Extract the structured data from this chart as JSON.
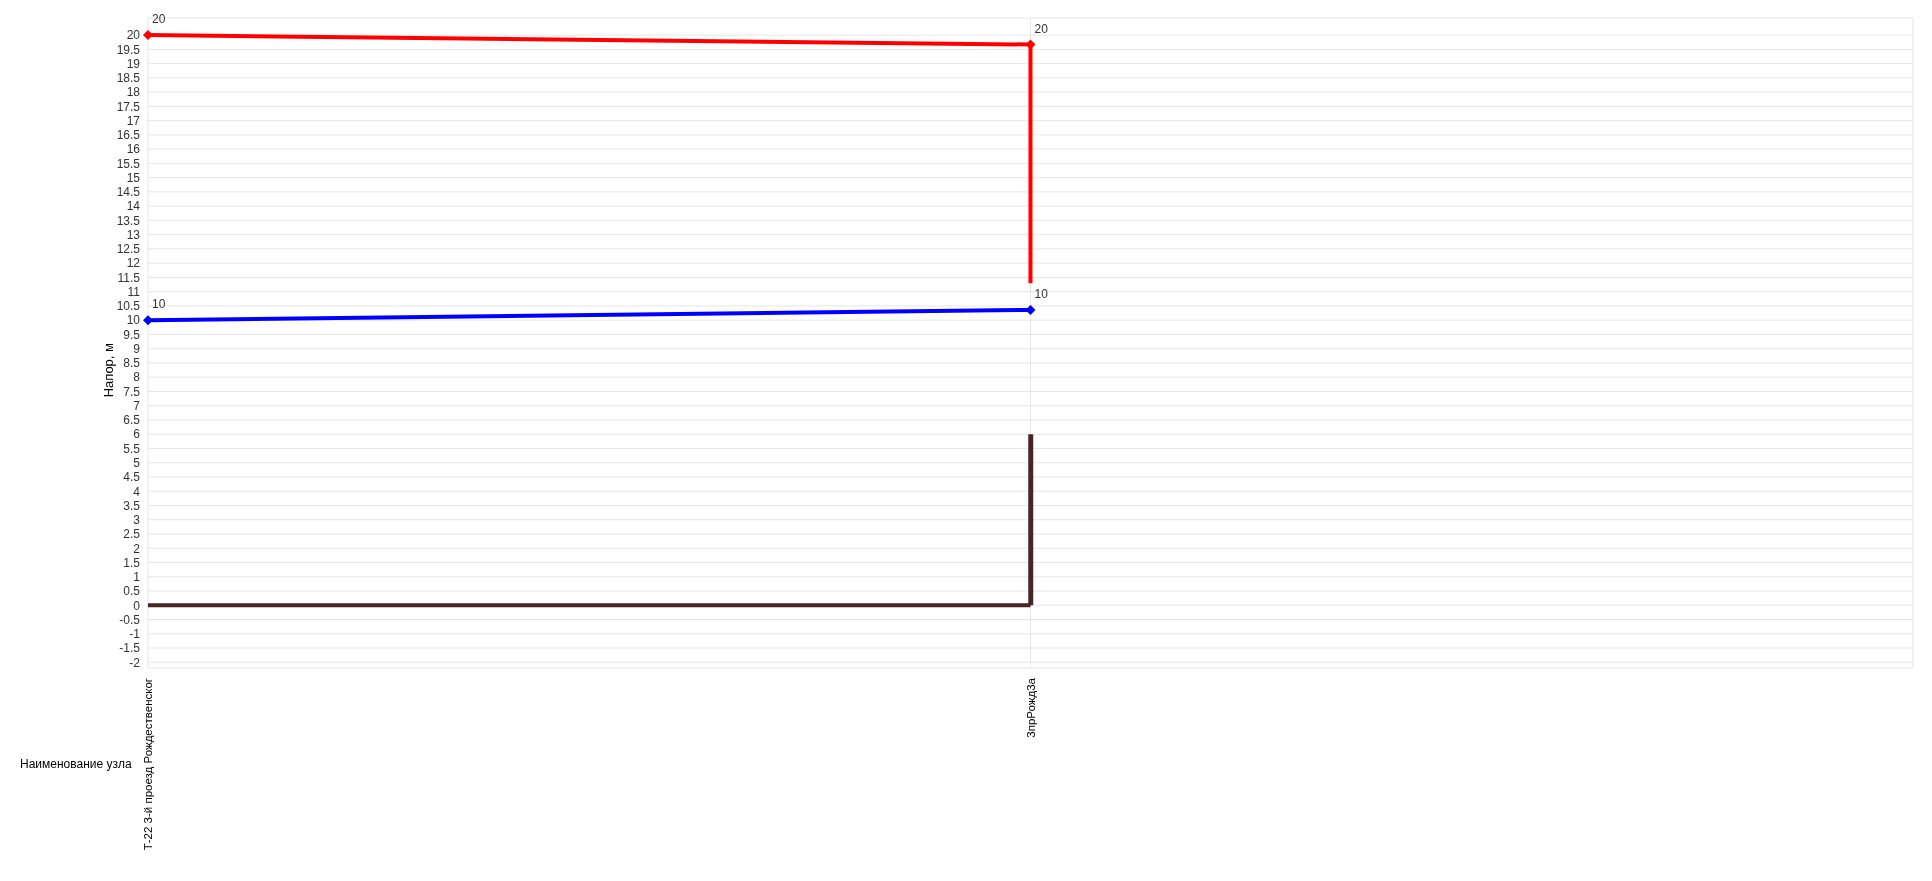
{
  "chart_data": {
    "type": "line",
    "ylabel": "Напор, м",
    "xlabel": "Наименование узла",
    "categories": [
      "Т-22 3-й проезд Рождественског",
      "3прРожд3а",
      null
    ],
    "ylim": [
      -2.2,
      20.6
    ],
    "yticks": [
      -2,
      -1.5,
      -1,
      -0.5,
      0,
      0.5,
      1,
      1.5,
      2,
      2.5,
      3,
      3.5,
      4,
      4.5,
      5,
      5.5,
      6,
      6.5,
      7,
      7.5,
      8,
      8.5,
      9,
      9.5,
      10,
      10.5,
      11,
      11.5,
      12,
      12.5,
      13,
      13.5,
      14,
      14.5,
      15,
      15.5,
      16,
      16.5,
      17,
      17.5,
      18,
      18.5,
      19,
      19.5,
      20
    ],
    "grid": true,
    "marker": "diamond",
    "series": [
      {
        "color": "#ff0000",
        "values": [
          20,
          19.67,
          null
        ],
        "errors": [
          null,
          [
            11.3,
            19.67
          ],
          null
        ],
        "value_labels": [
          "20",
          "20",
          null
        ]
      },
      {
        "color": "#0000ff",
        "values": [
          10,
          10.36,
          null
        ],
        "value_labels": [
          "10",
          "10",
          null
        ]
      },
      {
        "color": "#4a2424",
        "values": [
          0,
          0,
          null
        ],
        "marker": "none"
      },
      {
        "type": "bar",
        "color": "#4a2424",
        "values": [
          null,
          6,
          null
        ]
      }
    ]
  }
}
